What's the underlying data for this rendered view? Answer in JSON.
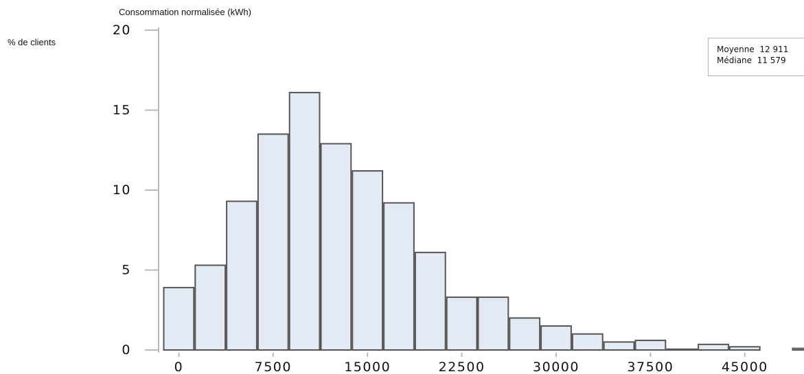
{
  "chart_data": {
    "type": "bar",
    "title": "",
    "xlabel": "Consommation normalisée (kWh)",
    "ylabel": "% de clients",
    "xlim": [
      -2500,
      50000
    ],
    "ylim": [
      0,
      20
    ],
    "bin_width": 2500,
    "x_ticks": [
      0,
      7500,
      15000,
      22500,
      30000,
      37500,
      45000
    ],
    "x_tick_labels": [
      "0",
      "7500",
      "15000",
      "22500",
      "30000",
      "37500",
      "45000"
    ],
    "y_ticks": [
      0,
      5,
      10,
      15,
      20
    ],
    "y_tick_labels": [
      "0",
      "5",
      "10",
      "15",
      "20"
    ],
    "bins": [
      {
        "x": 0,
        "value": 3.9
      },
      {
        "x": 2500,
        "value": 5.3
      },
      {
        "x": 5000,
        "value": 9.3
      },
      {
        "x": 7500,
        "value": 13.5
      },
      {
        "x": 10000,
        "value": 16.1
      },
      {
        "x": 12500,
        "value": 12.9
      },
      {
        "x": 15000,
        "value": 11.2
      },
      {
        "x": 17500,
        "value": 9.2
      },
      {
        "x": 20000,
        "value": 6.1
      },
      {
        "x": 22500,
        "value": 3.3
      },
      {
        "x": 25000,
        "value": 3.3
      },
      {
        "x": 27500,
        "value": 2.0
      },
      {
        "x": 30000,
        "value": 1.5
      },
      {
        "x": 32500,
        "value": 1.0
      },
      {
        "x": 35000,
        "value": 0.5
      },
      {
        "x": 37500,
        "value": 0.6
      },
      {
        "x": 40000,
        "value": 0.05
      },
      {
        "x": 42500,
        "value": 0.35
      },
      {
        "x": 45000,
        "value": 0.2
      },
      {
        "x": 50000,
        "value": 0.1
      }
    ],
    "legend": {
      "position": "top-right",
      "rows": [
        {
          "label": "Moyenne",
          "value": "12 911"
        },
        {
          "label": "Médiane",
          "value": "11 579"
        }
      ]
    },
    "colors": {
      "bar_fill": "#e4eaf3",
      "bar_stroke": "#555555",
      "axis": "#b8b8b8"
    }
  }
}
